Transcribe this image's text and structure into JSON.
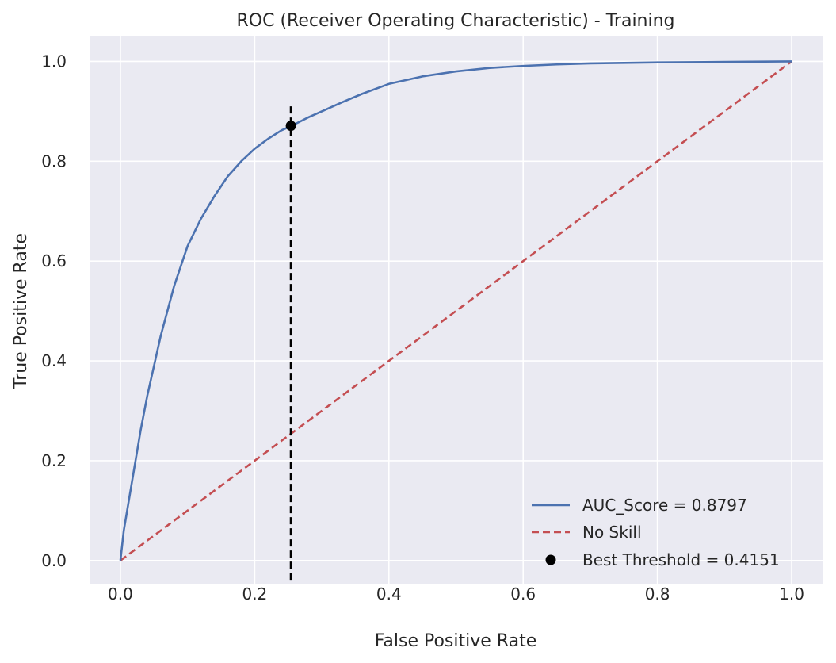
{
  "chart_data": {
    "type": "line",
    "title": "ROC (Receiver Operating Characteristic) - Training",
    "xlabel": "False Positive Rate",
    "ylabel": "True Positive Rate",
    "xlim": [
      -0.046,
      1.046
    ],
    "ylim": [
      -0.048,
      1.05
    ],
    "xticks": [
      0.0,
      0.2,
      0.4,
      0.6,
      0.8,
      1.0
    ],
    "xtick_labels": [
      "0.0",
      "0.2",
      "0.4",
      "0.6",
      "0.8",
      "1.0"
    ],
    "yticks": [
      0.0,
      0.2,
      0.4,
      0.6,
      0.8,
      1.0
    ],
    "ytick_labels": [
      "0.0",
      "0.2",
      "0.4",
      "0.6",
      "0.8",
      "1.0"
    ],
    "grid": true,
    "background": "#eaeaf2",
    "grid_color": "#ffffff",
    "legend_position": "lower-right",
    "series": [
      {
        "name": "AUC_Score = 0.8797",
        "kind": "line",
        "style": "solid",
        "color": "#4c72b0",
        "x": [
          0.0,
          0.005,
          0.01,
          0.02,
          0.03,
          0.04,
          0.05,
          0.06,
          0.07,
          0.08,
          0.09,
          0.1,
          0.12,
          0.14,
          0.16,
          0.18,
          0.2,
          0.22,
          0.24,
          0.255,
          0.28,
          0.3,
          0.33,
          0.36,
          0.4,
          0.45,
          0.5,
          0.55,
          0.6,
          0.65,
          0.7,
          0.8,
          0.9,
          1.0
        ],
        "y": [
          0.0,
          0.06,
          0.1,
          0.18,
          0.26,
          0.33,
          0.39,
          0.45,
          0.5,
          0.55,
          0.59,
          0.63,
          0.685,
          0.73,
          0.77,
          0.8,
          0.825,
          0.845,
          0.862,
          0.871,
          0.888,
          0.9,
          0.918,
          0.935,
          0.955,
          0.97,
          0.98,
          0.987,
          0.991,
          0.994,
          0.996,
          0.998,
          0.999,
          1.0
        ]
      },
      {
        "name": "No Skill",
        "kind": "line",
        "style": "dashed",
        "color": "#c44e52",
        "x": [
          0.0,
          1.0
        ],
        "y": [
          0.0,
          1.0
        ]
      },
      {
        "name": "Best Threshold = 0.4151",
        "kind": "scatter",
        "color": "#000000",
        "x": [
          0.254
        ],
        "y": [
          0.871
        ]
      }
    ],
    "threshold_line": {
      "x": 0.254,
      "y_range": [
        -0.048,
        0.91
      ],
      "style": "dashed",
      "color": "#000000"
    }
  }
}
